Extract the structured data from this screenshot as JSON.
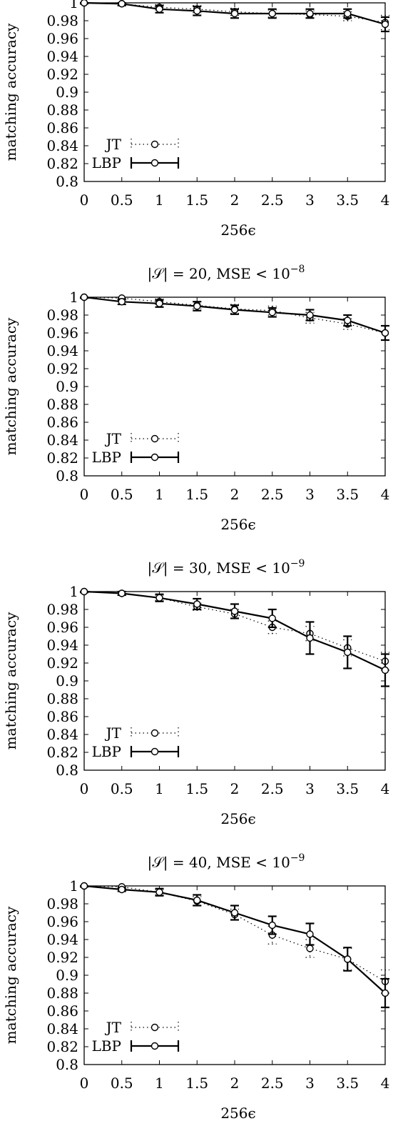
{
  "chart_data": [
    {
      "type": "line",
      "title": "",
      "xlabel": "256ϵ",
      "ylabel": "matching accuracy",
      "x": [
        0,
        0.5,
        1,
        1.5,
        2,
        2.5,
        3,
        3.5,
        4
      ],
      "xticks": [
        "0",
        "0.5",
        "1",
        "1.5",
        "2",
        "2.5",
        "3",
        "3.5",
        "4"
      ],
      "yticks": [
        "0.8",
        "0.82",
        "0.84",
        "0.86",
        "0.88",
        "0.9",
        "0.92",
        "0.94",
        "0.96",
        "0.98",
        "1"
      ],
      "xlim": [
        0,
        4
      ],
      "ylim": [
        0.8,
        1
      ],
      "legend_position": "bottom-left",
      "series": [
        {
          "name": "JT",
          "style": "dotted",
          "values": [
            1.0,
            0.999,
            0.995,
            0.993,
            0.99,
            0.988,
            0.987,
            0.985,
            0.978
          ],
          "err": [
            0.001,
            0.002,
            0.003,
            0.004,
            0.004,
            0.004,
            0.004,
            0.005,
            0.008
          ]
        },
        {
          "name": "LBP",
          "style": "solid",
          "values": [
            1.0,
            0.999,
            0.993,
            0.991,
            0.988,
            0.988,
            0.988,
            0.988,
            0.976
          ],
          "err": [
            0.001,
            0.002,
            0.004,
            0.005,
            0.005,
            0.005,
            0.005,
            0.005,
            0.008
          ]
        }
      ]
    },
    {
      "type": "line",
      "title": "|𝒮| = 20, MSE < 10",
      "title_exp": "−8",
      "xlabel": "256ϵ",
      "ylabel": "matching accuracy",
      "x": [
        0,
        0.5,
        1,
        1.5,
        2,
        2.5,
        3,
        3.5,
        4
      ],
      "xticks": [
        "0",
        "0.5",
        "1",
        "1.5",
        "2",
        "2.5",
        "3",
        "3.5",
        "4"
      ],
      "yticks": [
        "0.8",
        "0.82",
        "0.84",
        "0.86",
        "0.88",
        "0.9",
        "0.92",
        "0.94",
        "0.96",
        "0.98",
        "1"
      ],
      "xlim": [
        0,
        4
      ],
      "ylim": [
        0.8,
        1
      ],
      "legend_position": "bottom-left",
      "series": [
        {
          "name": "JT",
          "style": "dotted",
          "values": [
            1.0,
            0.999,
            0.995,
            0.991,
            0.987,
            0.985,
            0.977,
            0.97,
            0.96
          ],
          "err": [
            0.001,
            0.002,
            0.003,
            0.004,
            0.005,
            0.005,
            0.006,
            0.006,
            0.008
          ]
        },
        {
          "name": "LBP",
          "style": "solid",
          "values": [
            1.0,
            0.995,
            0.993,
            0.99,
            0.986,
            0.983,
            0.98,
            0.974,
            0.96
          ],
          "err": [
            0.001,
            0.003,
            0.004,
            0.005,
            0.005,
            0.005,
            0.006,
            0.006,
            0.008
          ]
        }
      ]
    },
    {
      "type": "line",
      "title": "|𝒮| = 30, MSE < 10",
      "title_exp": "−9",
      "xlabel": "256ϵ",
      "ylabel": "matching accuracy",
      "x": [
        0,
        0.5,
        1,
        1.5,
        2,
        2.5,
        3,
        3.5,
        4
      ],
      "xticks": [
        "0",
        "0.5",
        "1",
        "1.5",
        "2",
        "2.5",
        "3",
        "3.5",
        "4"
      ],
      "yticks": [
        "0.8",
        "0.82",
        "0.84",
        "0.86",
        "0.88",
        "0.9",
        "0.92",
        "0.94",
        "0.96",
        "0.98",
        "1"
      ],
      "xlim": [
        0,
        4
      ],
      "ylim": [
        0.8,
        1
      ],
      "legend_position": "bottom-left",
      "series": [
        {
          "name": "JT",
          "style": "dotted",
          "values": [
            1.0,
            0.998,
            0.993,
            0.983,
            0.975,
            0.96,
            0.953,
            0.937,
            0.922
          ],
          "err": [
            0.001,
            0.002,
            0.003,
            0.004,
            0.005,
            0.007,
            0.008,
            0.009,
            0.01
          ]
        },
        {
          "name": "LBP",
          "style": "solid",
          "values": [
            1.0,
            0.998,
            0.993,
            0.986,
            0.978,
            0.97,
            0.948,
            0.932,
            0.912
          ],
          "err": [
            0.001,
            0.002,
            0.004,
            0.006,
            0.008,
            0.01,
            0.018,
            0.018,
            0.018
          ]
        }
      ]
    },
    {
      "type": "line",
      "title": "|𝒮| = 40, MSE < 10",
      "title_exp": "−9",
      "xlabel": "256ϵ",
      "ylabel": "matching accuracy",
      "x": [
        0,
        0.5,
        1,
        1.5,
        2,
        2.5,
        3,
        3.5,
        4
      ],
      "xticks": [
        "0",
        "0.5",
        "1",
        "1.5",
        "2",
        "2.5",
        "3",
        "3.5",
        "4"
      ],
      "yticks": [
        "0.8",
        "0.82",
        "0.84",
        "0.86",
        "0.88",
        "0.9",
        "0.92",
        "0.94",
        "0.96",
        "0.98",
        "1"
      ],
      "xlim": [
        0,
        4
      ],
      "ylim": [
        0.8,
        1
      ],
      "legend_position": "bottom-left",
      "series": [
        {
          "name": "JT",
          "style": "dotted",
          "values": [
            1.0,
            0.999,
            0.993,
            0.983,
            0.968,
            0.945,
            0.93,
            0.918,
            0.893
          ],
          "err": [
            0.001,
            0.002,
            0.003,
            0.005,
            0.006,
            0.01,
            0.01,
            0.012,
            0.013
          ]
        },
        {
          "name": "LBP",
          "style": "solid",
          "values": [
            1.0,
            0.996,
            0.993,
            0.984,
            0.97,
            0.956,
            0.946,
            0.918,
            0.88
          ],
          "err": [
            0.001,
            0.002,
            0.004,
            0.006,
            0.008,
            0.01,
            0.012,
            0.013,
            0.016
          ]
        }
      ]
    }
  ]
}
